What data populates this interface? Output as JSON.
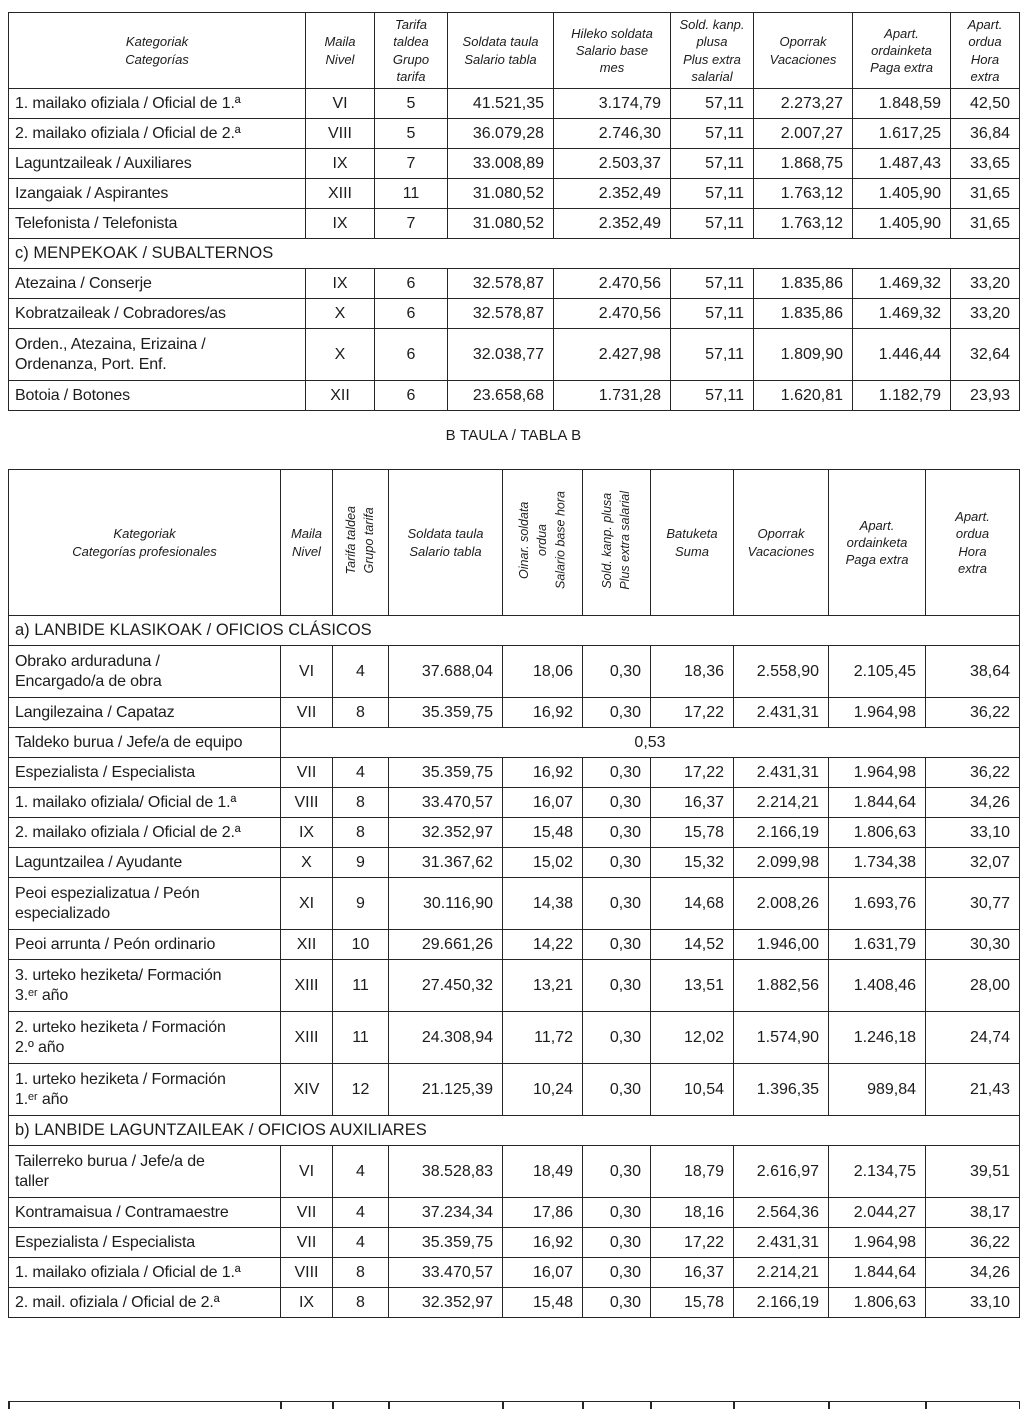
{
  "document": {
    "table_b_title": "B TAULA / TABLA B"
  },
  "table_a": {
    "headers": [
      [
        "Kategoriak",
        "Categorías"
      ],
      [
        "Maila",
        "Nivel"
      ],
      [
        "Tarifa",
        "taldea",
        "Grupo",
        "tarifa"
      ],
      [
        "Soldata taula",
        "Salario tabla"
      ],
      [
        "Hileko soldata",
        "Salario base",
        "mes"
      ],
      [
        "Sold. kanp.",
        "plusa",
        "Plus extra",
        "salarial"
      ],
      [
        "Oporrak",
        "Vacaciones"
      ],
      [
        "Apart.",
        "ordainketa",
        "Paga extra"
      ],
      [
        "Apart.",
        "ordua",
        "Hora",
        "extra"
      ]
    ],
    "rows": [
      {
        "type": "data",
        "cells": [
          "1. mailako ofiziala / Oficial de 1.ª",
          "VI",
          "5",
          "41.521,35",
          "3.174,79",
          "57,11",
          "2.273,27",
          "1.848,59",
          "42,50"
        ]
      },
      {
        "type": "data",
        "cells": [
          "2. mailako ofiziala / Oficial de 2.ª",
          "VIII",
          "5",
          "36.079,28",
          "2.746,30",
          "57,11",
          "2.007,27",
          "1.617,25",
          "36,84"
        ]
      },
      {
        "type": "data",
        "cells": [
          "Laguntzaileak / Auxiliares",
          "IX",
          "7",
          "33.008,89",
          "2.503,37",
          "57,11",
          "1.868,75",
          "1.487,43",
          "33,65"
        ]
      },
      {
        "type": "data",
        "cells": [
          "Izangaiak / Aspirantes",
          "XIII",
          "11",
          "31.080,52",
          "2.352,49",
          "57,11",
          "1.763,12",
          "1.405,90",
          "31,65"
        ]
      },
      {
        "type": "data",
        "cells": [
          "Telefonista / Telefonista",
          "IX",
          "7",
          "31.080,52",
          "2.352,49",
          "57,11",
          "1.763,12",
          "1.405,90",
          "31,65"
        ]
      },
      {
        "type": "section",
        "label": "c) MENPEKOAK / SUBALTERNOS"
      },
      {
        "type": "data",
        "cells": [
          "Atezaina / Conserje",
          "IX",
          "6",
          "32.578,87",
          "2.470,56",
          "57,11",
          "1.835,86",
          "1.469,32",
          "33,20"
        ]
      },
      {
        "type": "data",
        "cells": [
          "Kobratzaileak / Cobradores/as",
          "X",
          "6",
          "32.578,87",
          "2.470,56",
          "57,11",
          "1.835,86",
          "1.469,32",
          "33,20"
        ]
      },
      {
        "type": "data",
        "cells": [
          [
            "Orden., Atezaina, Erizaina /",
            "Ordenanza, Port. Enf."
          ],
          "X",
          "6",
          "32.038,77",
          "2.427,98",
          "57,11",
          "1.809,90",
          "1.446,44",
          "32,64"
        ]
      },
      {
        "type": "data",
        "cells": [
          "Botoia / Botones",
          "XII",
          "6",
          "23.658,68",
          "1.731,28",
          "57,11",
          "1.620,81",
          "1.182,79",
          "23,93"
        ]
      }
    ]
  },
  "table_b": {
    "headers": [
      [
        "Kategoriak",
        "Categorías profesionales"
      ],
      [
        "Maila",
        "Nivel"
      ],
      [
        "Tarifa taldea",
        "Grupo tarifa"
      ],
      [
        "Soldata taula",
        "Salario tabla"
      ],
      [
        "Oinar. soldata",
        "ordua",
        "Salario base hora"
      ],
      [
        "Sold. kanp. plusa",
        "Plus extra salarial"
      ],
      [
        "Batuketa",
        "Suma"
      ],
      [
        "Oporrak",
        "Vacaciones"
      ],
      [
        "Apart.",
        "ordainketa",
        "Paga extra"
      ],
      [
        "Apart.",
        "ordua",
        "Hora",
        "extra"
      ]
    ],
    "rows": [
      {
        "type": "section",
        "label": "a) LANBIDE KLASIKOAK / OFICIOS CLÁSICOS"
      },
      {
        "type": "data",
        "cells": [
          [
            "Obrako arduraduna /",
            "Encargado/a de obra"
          ],
          "VI",
          "4",
          "37.688,04",
          "18,06",
          "0,30",
          "18,36",
          "2.558,90",
          "2.105,45",
          "38,64"
        ]
      },
      {
        "type": "data",
        "cells": [
          "Langilezaina / Capataz",
          "VII",
          "8",
          "35.359,75",
          "16,92",
          "0,30",
          "17,22",
          "2.431,31",
          "1.964,98",
          "36,22"
        ]
      },
      {
        "type": "merged",
        "cells": [
          "Taldeko burua / Jefe/a de equipo"
        ],
        "value": "0,53"
      },
      {
        "type": "data",
        "cells": [
          "Espezialista / Especialista",
          "VII",
          "4",
          "35.359,75",
          "16,92",
          "0,30",
          "17,22",
          "2.431,31",
          "1.964,98",
          "36,22"
        ]
      },
      {
        "type": "data",
        "cells": [
          "1. mailako ofiziala/ Oficial de 1.ª",
          "VIII",
          "8",
          "33.470,57",
          "16,07",
          "0,30",
          "16,37",
          "2.214,21",
          "1.844,64",
          "34,26"
        ]
      },
      {
        "type": "data",
        "cells": [
          "2. mailako ofiziala / Oficial de 2.ª",
          "IX",
          "8",
          "32.352,97",
          "15,48",
          "0,30",
          "15,78",
          "2.166,19",
          "1.806,63",
          "33,10"
        ]
      },
      {
        "type": "data",
        "cells": [
          "Laguntzailea / Ayudante",
          "X",
          "9",
          "31.367,62",
          "15,02",
          "0,30",
          "15,32",
          "2.099,98",
          "1.734,38",
          "32,07"
        ]
      },
      {
        "type": "data",
        "cells": [
          [
            "Peoi espezializatua / Peón",
            "especializado"
          ],
          "XI",
          "9",
          "30.116,90",
          "14,38",
          "0,30",
          "14,68",
          "2.008,26",
          "1.693,76",
          "30,77"
        ]
      },
      {
        "type": "data",
        "cells": [
          "Peoi arrunta / Peón ordinario",
          "XII",
          "10",
          "29.661,26",
          "14,22",
          "0,30",
          "14,52",
          "1.946,00",
          "1.631,79",
          "30,30"
        ]
      },
      {
        "type": "data",
        "cells": [
          [
            "3. urteko heziketa/ Formación",
            "3.ᵉʳ año"
          ],
          "XIII",
          "11",
          "27.450,32",
          "13,21",
          "0,30",
          "13,51",
          "1.882,56",
          "1.408,46",
          "28,00"
        ]
      },
      {
        "type": "data",
        "cells": [
          [
            "2. urteko heziketa / Formación",
            "2.º año"
          ],
          "XIII",
          "11",
          "24.308,94",
          "11,72",
          "0,30",
          "12,02",
          "1.574,90",
          "1.246,18",
          "24,74"
        ]
      },
      {
        "type": "data",
        "cells": [
          [
            "1. urteko heziketa / Formación",
            "1.ᵉʳ año"
          ],
          "XIV",
          "12",
          "21.125,39",
          "10,24",
          "0,30",
          "10,54",
          "1.396,35",
          "989,84",
          "21,43"
        ]
      },
      {
        "type": "section",
        "label": "b) LANBIDE LAGUNTZAILEAK / OFICIOS AUXILIARES"
      },
      {
        "type": "data",
        "cells": [
          [
            "Tailerreko burua / Jefe/a de",
            "taller"
          ],
          "VI",
          "4",
          "38.528,83",
          "18,49",
          "0,30",
          "18,79",
          "2.616,97",
          "2.134,75",
          "39,51"
        ]
      },
      {
        "type": "data",
        "cells": [
          "Kontramaisua / Contramaestre",
          "VII",
          "4",
          "37.234,34",
          "17,86",
          "0,30",
          "18,16",
          "2.564,36",
          "2.044,27",
          "38,17"
        ]
      },
      {
        "type": "data",
        "cells": [
          "Espezialista / Especialista",
          "VII",
          "4",
          "35.359,75",
          "16,92",
          "0,30",
          "17,22",
          "2.431,31",
          "1.964,98",
          "36,22"
        ]
      },
      {
        "type": "data",
        "cells": [
          "1. mailako ofiziala / Oficial de 1.ª",
          "VIII",
          "8",
          "33.470,57",
          "16,07",
          "0,30",
          "16,37",
          "2.214,21",
          "1.844,64",
          "34,26"
        ]
      },
      {
        "type": "data",
        "cells": [
          "2. mail. ofiziala / Oficial de 2.ª",
          "IX",
          "8",
          "32.352,97",
          "15,48",
          "0,30",
          "15,78",
          "2.166,19",
          "1.806,63",
          "33,10"
        ]
      }
    ]
  }
}
